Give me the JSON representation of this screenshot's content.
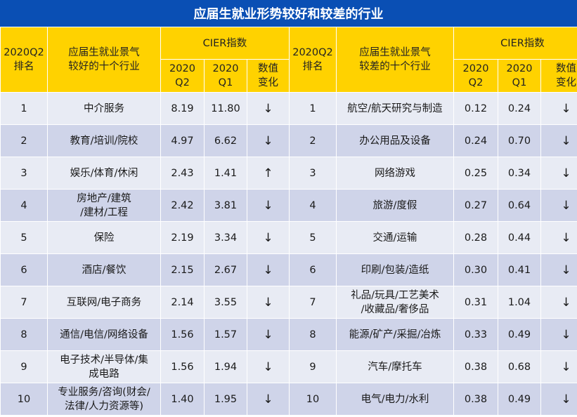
{
  "title": "应届生就业形势较好和较差的行业",
  "header": {
    "rank_label": "2020Q2\n排名",
    "good_industry_label": "应届生就业景气\n较好的十个行业",
    "bad_industry_label": "应届生就业景气\n较差的十个行业",
    "cier_label": "CIER指数",
    "q2_label": "2020\nQ2",
    "q1_label": "2020\nQ1",
    "change_label": "数值\n变化"
  },
  "rows": [
    {
      "g_rank": "1",
      "g_name": "中介服务",
      "g_q2": "8.19",
      "g_q1": "11.80",
      "g_chg": "↓",
      "b_rank": "1",
      "b_name": "航空/航天研究与制造",
      "b_q2": "0.12",
      "b_q1": "0.24",
      "b_chg": "↓"
    },
    {
      "g_rank": "2",
      "g_name": "教育/培训/院校",
      "g_q2": "4.97",
      "g_q1": "6.62",
      "g_chg": "↓",
      "b_rank": "2",
      "b_name": "办公用品及设备",
      "b_q2": "0.24",
      "b_q1": "0.70",
      "b_chg": "↓"
    },
    {
      "g_rank": "3",
      "g_name": "娱乐/体育/休闲",
      "g_q2": "2.43",
      "g_q1": "1.41",
      "g_chg": "↑",
      "b_rank": "3",
      "b_name": "网络游戏",
      "b_q2": "0.25",
      "b_q1": "0.34",
      "b_chg": "↓"
    },
    {
      "g_rank": "4",
      "g_name": "房地产/建筑\n/建材/工程",
      "g_q2": "2.42",
      "g_q1": "3.81",
      "g_chg": "↓",
      "b_rank": "4",
      "b_name": "旅游/度假",
      "b_q2": "0.27",
      "b_q1": "0.64",
      "b_chg": "↓"
    },
    {
      "g_rank": "5",
      "g_name": "保险",
      "g_q2": "2.19",
      "g_q1": "3.34",
      "g_chg": "↓",
      "b_rank": "5",
      "b_name": "交通/运输",
      "b_q2": "0.28",
      "b_q1": "0.44",
      "b_chg": "↓"
    },
    {
      "g_rank": "6",
      "g_name": "酒店/餐饮",
      "g_q2": "2.15",
      "g_q1": "2.67",
      "g_chg": "↓",
      "b_rank": "6",
      "b_name": "印刷/包装/造纸",
      "b_q2": "0.30",
      "b_q1": "0.41",
      "b_chg": "↓"
    },
    {
      "g_rank": "7",
      "g_name": "互联网/电子商务",
      "g_q2": "2.14",
      "g_q1": "3.55",
      "g_chg": "↓",
      "b_rank": "7",
      "b_name": "礼品/玩具/工艺美术\n/收藏品/奢侈品",
      "b_q2": "0.31",
      "b_q1": "1.04",
      "b_chg": "↓"
    },
    {
      "g_rank": "8",
      "g_name": "通信/电信/网络设备",
      "g_q2": "1.56",
      "g_q1": "1.57",
      "g_chg": "↓",
      "b_rank": "8",
      "b_name": "能源/矿产/采掘/冶炼",
      "b_q2": "0.33",
      "b_q1": "0.49",
      "b_chg": "↓"
    },
    {
      "g_rank": "9",
      "g_name": "电子技术/半导体/集\n成电路",
      "g_q2": "1.56",
      "g_q1": "1.94",
      "g_chg": "↓",
      "b_rank": "9",
      "b_name": "汽车/摩托车",
      "b_q2": "0.38",
      "b_q1": "0.68",
      "b_chg": "↓"
    },
    {
      "g_rank": "10",
      "g_name": "专业服务/咨询(财会/\n法律/人力资源等)",
      "g_q2": "1.40",
      "g_q1": "1.95",
      "g_chg": "↓",
      "b_rank": "10",
      "b_name": "电气/电力/水利",
      "b_q2": "0.38",
      "b_q1": "0.49",
      "b_chg": "↓"
    }
  ]
}
